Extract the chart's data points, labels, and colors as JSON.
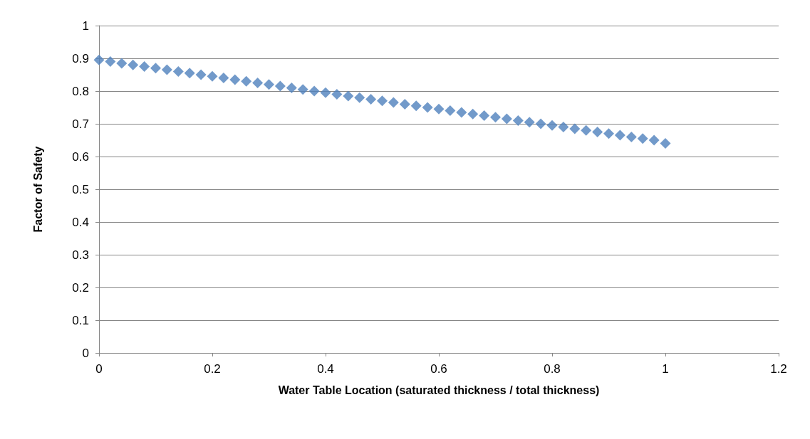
{
  "chart_data": {
    "type": "scatter",
    "xlabel": "Water Table Location (saturated thickness / total thickness)",
    "ylabel": "Factor of Safety",
    "x": [
      0,
      0.02,
      0.04,
      0.06,
      0.08,
      0.1,
      0.12,
      0.14,
      0.16,
      0.18,
      0.2,
      0.22,
      0.24,
      0.26,
      0.28,
      0.3,
      0.32,
      0.34,
      0.36,
      0.38,
      0.4,
      0.42,
      0.44,
      0.46,
      0.48,
      0.5,
      0.52,
      0.54,
      0.56,
      0.58,
      0.6,
      0.62,
      0.64,
      0.66,
      0.68,
      0.7,
      0.72,
      0.74,
      0.76,
      0.78,
      0.8,
      0.82,
      0.84,
      0.86,
      0.88,
      0.9,
      0.92,
      0.94,
      0.96,
      0.98,
      1
    ],
    "series": [
      {
        "color": "#4f81bd",
        "values": [
          0.895,
          0.89,
          0.885,
          0.88,
          0.875,
          0.87,
          0.865,
          0.86,
          0.855,
          0.85,
          0.845,
          0.84,
          0.835,
          0.83,
          0.825,
          0.82,
          0.815,
          0.81,
          0.805,
          0.8,
          0.795,
          0.79,
          0.785,
          0.78,
          0.775,
          0.77,
          0.765,
          0.76,
          0.755,
          0.75,
          0.745,
          0.74,
          0.735,
          0.73,
          0.725,
          0.72,
          0.715,
          0.71,
          0.705,
          0.7,
          0.695,
          0.69,
          0.685,
          0.68,
          0.675,
          0.67,
          0.665,
          0.66,
          0.655,
          0.65,
          0.64
        ]
      }
    ],
    "xlim": [
      0,
      1.2
    ],
    "xticks": [
      0,
      0.2,
      0.4,
      0.6,
      0.8,
      1,
      1.2
    ],
    "ylim": [
      0,
      1
    ],
    "yticks": [
      0,
      0.1,
      0.2,
      0.3,
      0.4,
      0.5,
      0.6,
      0.7,
      0.8,
      0.9,
      1
    ],
    "grid": "y",
    "marker": "diamond"
  }
}
